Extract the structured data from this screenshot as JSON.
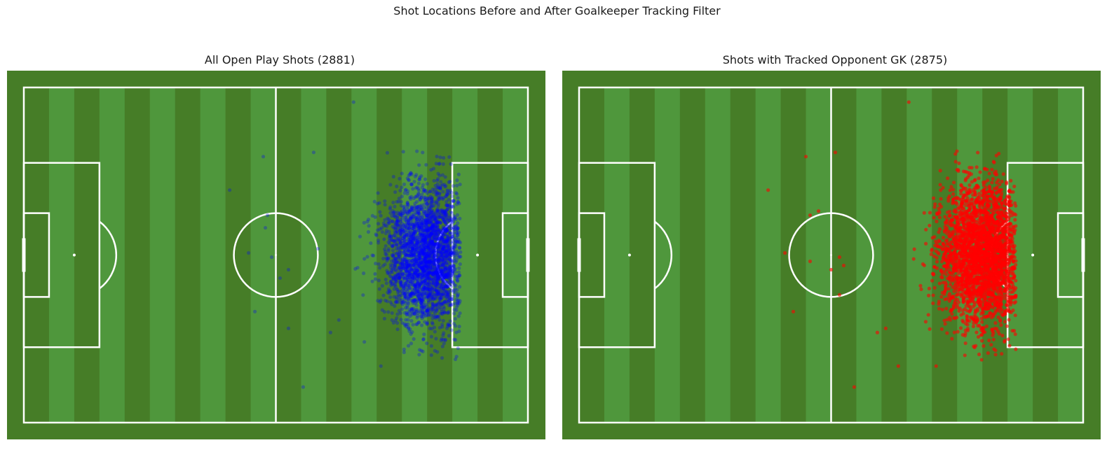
{
  "figure": {
    "suptitle": "Shot Locations Before and After Goalkeeper Tracking Filter"
  },
  "chart_data": [
    {
      "type": "scatter",
      "title": "All Open Play Shots (2881)",
      "shot_count": 2881,
      "xlabel": "",
      "ylabel": "",
      "coordinate_system": "StatsBomb pitch (120 x 80), attacking left to right",
      "xlim": [
        0,
        120
      ],
      "ylim": [
        0,
        80
      ],
      "marker_color": "#0000ff",
      "marker_alpha": 0.3,
      "grid": false,
      "legend": "none",
      "distribution": {
        "shape": "dense cluster in front of right-hand goal",
        "x_range_dense": [
          78,
          104
        ],
        "y_range_dense": [
          15,
          65
        ],
        "x_center": 96,
        "y_center": 40
      },
      "outliers": [
        {
          "x": 78.5,
          "y": 3.5
        },
        {
          "x": 69,
          "y": 15.5
        },
        {
          "x": 57,
          "y": 16.5
        },
        {
          "x": 49,
          "y": 24.5
        },
        {
          "x": 58,
          "y": 30.5
        },
        {
          "x": 57.5,
          "y": 33.5
        },
        {
          "x": 53.5,
          "y": 39.5
        },
        {
          "x": 59,
          "y": 40.5
        },
        {
          "x": 63,
          "y": 43.5
        },
        {
          "x": 70,
          "y": 38.5
        },
        {
          "x": 61,
          "y": 45.5
        },
        {
          "x": 55,
          "y": 53.5
        },
        {
          "x": 63,
          "y": 57.5
        },
        {
          "x": 73,
          "y": 58.5
        },
        {
          "x": 75,
          "y": 55.5
        },
        {
          "x": 66.5,
          "y": 71.5
        },
        {
          "x": 85,
          "y": 66.5
        }
      ]
    },
    {
      "type": "scatter",
      "title": "Shots with Tracked Opponent GK (2875)",
      "shot_count": 2875,
      "xlabel": "",
      "ylabel": "",
      "coordinate_system": "StatsBomb pitch (120 x 80), attacking left to right",
      "xlim": [
        0,
        120
      ],
      "ylim": [
        0,
        80
      ],
      "marker_color": "#ff0000",
      "marker_alpha": 0.6,
      "grid": false,
      "legend": "none",
      "distribution": {
        "shape": "dense cluster in front of right-hand goal",
        "x_range_dense": [
          78,
          104
        ],
        "y_range_dense": [
          15,
          65
        ],
        "x_center": 96,
        "y_center": 40
      },
      "outliers": [
        {
          "x": 78.5,
          "y": 3.5
        },
        {
          "x": 61,
          "y": 15.5
        },
        {
          "x": 54,
          "y": 16.5
        },
        {
          "x": 45,
          "y": 24.5
        },
        {
          "x": 55,
          "y": 30.5
        },
        {
          "x": 57,
          "y": 29.5
        },
        {
          "x": 49,
          "y": 39.5
        },
        {
          "x": 55,
          "y": 41.5
        },
        {
          "x": 60,
          "y": 43.5
        },
        {
          "x": 62,
          "y": 40.5
        },
        {
          "x": 63,
          "y": 42.5
        },
        {
          "x": 51,
          "y": 53.5
        },
        {
          "x": 62,
          "y": 49.5
        },
        {
          "x": 73,
          "y": 57.5
        },
        {
          "x": 71,
          "y": 58.5
        },
        {
          "x": 65.5,
          "y": 71.5
        },
        {
          "x": 76,
          "y": 66.5
        },
        {
          "x": 85,
          "y": 66.5
        }
      ]
    }
  ]
}
